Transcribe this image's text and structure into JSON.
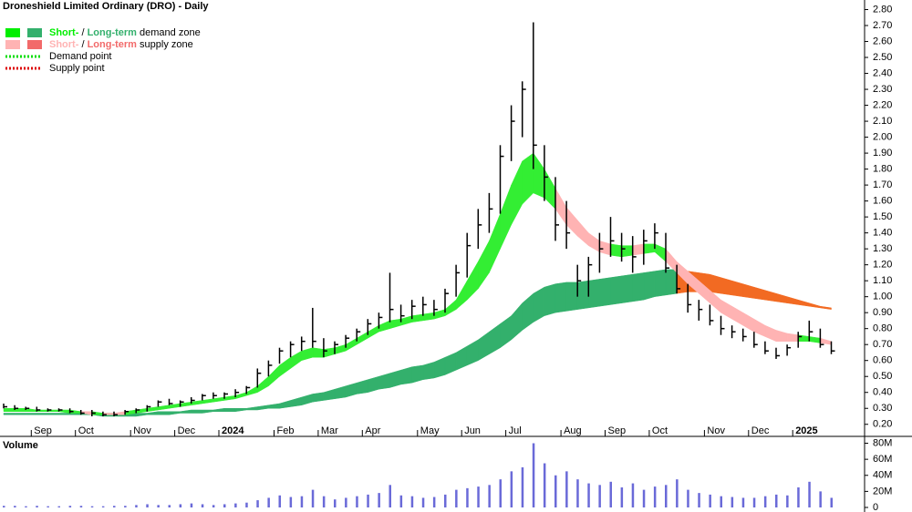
{
  "chart_data": [
    {
      "type": "ohlc",
      "title": "Droneshield Limited Ordinary (DRO) - Daily",
      "categories": [
        null,
        null,
        null,
        "Sep",
        null,
        null,
        null,
        "Oct",
        null,
        null,
        null,
        null,
        "Nov",
        null,
        null,
        null,
        "Dec",
        null,
        null,
        null,
        "2024",
        null,
        null,
        null,
        null,
        "Feb",
        null,
        null,
        null,
        "Mar",
        null,
        null,
        null,
        "Apr",
        null,
        null,
        null,
        null,
        "May",
        null,
        null,
        null,
        "Jun",
        null,
        null,
        null,
        "Jul",
        null,
        null,
        null,
        null,
        "Aug",
        null,
        null,
        null,
        "Sep",
        null,
        null,
        null,
        "Oct",
        null,
        null,
        null,
        null,
        "Nov",
        null,
        null,
        null,
        "Dec",
        null,
        null,
        null,
        "2025",
        null,
        null,
        null
      ],
      "high": [
        0.33,
        0.32,
        0.31,
        0.31,
        0.3,
        0.3,
        0.3,
        0.29,
        0.29,
        0.28,
        0.28,
        0.29,
        0.3,
        0.32,
        0.35,
        0.36,
        0.35,
        0.37,
        0.39,
        0.4,
        0.4,
        0.42,
        0.44,
        0.55,
        0.6,
        0.68,
        0.72,
        0.75,
        0.93,
        0.74,
        0.72,
        0.76,
        0.8,
        0.86,
        0.9,
        1.15,
        0.95,
        0.98,
        1.0,
        0.98,
        1.05,
        1.2,
        1.4,
        1.55,
        1.65,
        1.95,
        2.2,
        2.35,
        2.72,
        1.95,
        1.75,
        1.6,
        1.2,
        1.25,
        1.4,
        1.5,
        1.4,
        1.38,
        1.42,
        1.46,
        1.4,
        1.2,
        1.08,
        0.98,
        0.95,
        0.88,
        0.82,
        0.8,
        0.78,
        0.72,
        0.68,
        0.7,
        0.78,
        0.85,
        0.8,
        0.72
      ],
      "low": [
        0.3,
        0.29,
        0.29,
        0.28,
        0.28,
        0.28,
        0.27,
        0.26,
        0.25,
        0.25,
        0.25,
        0.26,
        0.27,
        0.28,
        0.31,
        0.32,
        0.31,
        0.33,
        0.35,
        0.36,
        0.36,
        0.37,
        0.39,
        0.43,
        0.5,
        0.58,
        0.62,
        0.66,
        0.68,
        0.62,
        0.64,
        0.68,
        0.72,
        0.76,
        0.8,
        0.84,
        0.84,
        0.86,
        0.88,
        0.88,
        0.9,
        1.0,
        1.12,
        1.3,
        1.4,
        1.52,
        1.85,
        2.0,
        1.8,
        1.6,
        1.35,
        1.3,
        1.0,
        1.0,
        1.15,
        1.25,
        1.22,
        1.15,
        1.2,
        1.3,
        1.15,
        1.02,
        0.9,
        0.85,
        0.82,
        0.76,
        0.74,
        0.72,
        0.68,
        0.64,
        0.61,
        0.63,
        0.68,
        0.72,
        0.68,
        0.64
      ],
      "close": [
        0.31,
        0.3,
        0.3,
        0.29,
        0.29,
        0.29,
        0.28,
        0.27,
        0.27,
        0.26,
        0.26,
        0.28,
        0.29,
        0.31,
        0.34,
        0.33,
        0.34,
        0.35,
        0.38,
        0.38,
        0.39,
        0.4,
        0.43,
        0.52,
        0.57,
        0.66,
        0.7,
        0.72,
        0.72,
        0.66,
        0.7,
        0.74,
        0.78,
        0.83,
        0.87,
        0.92,
        0.88,
        0.94,
        0.95,
        0.92,
        1.02,
        1.15,
        1.32,
        1.45,
        1.55,
        1.88,
        2.1,
        2.3,
        1.95,
        1.75,
        1.45,
        1.4,
        1.1,
        1.2,
        1.3,
        1.35,
        1.3,
        1.25,
        1.35,
        1.4,
        1.18,
        1.05,
        0.95,
        0.92,
        0.85,
        0.8,
        0.78,
        0.75,
        0.7,
        0.66,
        0.63,
        0.68,
        0.75,
        0.78,
        0.7,
        0.66
      ],
      "zones": [
        {
          "lower": [
            0.28,
            0.28,
            0.28,
            0.28,
            0.28,
            0.28,
            0.27,
            0.27,
            0.26,
            0.26,
            0.26,
            0.26,
            0.27,
            0.28,
            0.29,
            0.3,
            0.31,
            0.32,
            0.33,
            0.34,
            0.35,
            0.36,
            0.38,
            0.4,
            0.44,
            0.5,
            0.55,
            0.6,
            0.62,
            0.62,
            0.64,
            0.66,
            0.7,
            0.74,
            0.78,
            0.8,
            0.82,
            0.84,
            0.85,
            0.86,
            0.88,
            0.92,
            0.98,
            1.05,
            1.15,
            1.3,
            1.45,
            1.58,
            1.65,
            1.62,
            1.55,
            1.45,
            1.38,
            1.32,
            1.28,
            1.26,
            1.25,
            1.26,
            1.27,
            1.28,
            1.22,
            1.15,
            1.08,
            1.02,
            0.96,
            0.9,
            0.86,
            0.82,
            0.78,
            0.75,
            0.72,
            0.72,
            0.72,
            0.72,
            0.71,
            0.7
          ],
          "upper": [
            0.3,
            0.3,
            0.3,
            0.29,
            0.29,
            0.29,
            0.29,
            0.28,
            0.28,
            0.27,
            0.27,
            0.28,
            0.29,
            0.3,
            0.31,
            0.32,
            0.33,
            0.34,
            0.35,
            0.36,
            0.37,
            0.38,
            0.4,
            0.44,
            0.5,
            0.57,
            0.62,
            0.66,
            0.68,
            0.67,
            0.68,
            0.7,
            0.74,
            0.78,
            0.82,
            0.85,
            0.86,
            0.88,
            0.89,
            0.9,
            0.92,
            0.98,
            1.1,
            1.22,
            1.35,
            1.52,
            1.7,
            1.85,
            1.9,
            1.8,
            1.68,
            1.56,
            1.48,
            1.4,
            1.35,
            1.33,
            1.32,
            1.32,
            1.33,
            1.33,
            1.3,
            1.22,
            1.16,
            1.1,
            1.04,
            0.98,
            0.94,
            0.9,
            0.86,
            0.82,
            0.79,
            0.77,
            0.76,
            0.75,
            0.74,
            0.72
          ],
          "demand_color": "#33ee33",
          "supply_color": "#ffb3b3"
        },
        {
          "lower": [
            0.26,
            0.26,
            0.26,
            0.26,
            0.26,
            0.26,
            0.26,
            0.26,
            0.26,
            0.25,
            0.25,
            0.25,
            0.25,
            0.26,
            0.26,
            0.26,
            0.27,
            0.27,
            0.27,
            0.28,
            0.28,
            0.28,
            0.29,
            0.29,
            0.3,
            0.3,
            0.31,
            0.32,
            0.34,
            0.35,
            0.36,
            0.37,
            0.39,
            0.4,
            0.42,
            0.43,
            0.45,
            0.46,
            0.48,
            0.49,
            0.51,
            0.54,
            0.57,
            0.6,
            0.64,
            0.68,
            0.73,
            0.79,
            0.84,
            0.88,
            0.9,
            0.91,
            0.92,
            0.93,
            0.94,
            0.95,
            0.96,
            0.97,
            0.98,
            1.0,
            1.01,
            1.02,
            1.03,
            1.03,
            1.03,
            1.02,
            1.01,
            1.0,
            0.99,
            0.98,
            0.97,
            0.96,
            0.95,
            0.94,
            0.93,
            0.92
          ],
          "upper": [
            0.27,
            0.27,
            0.27,
            0.27,
            0.27,
            0.27,
            0.27,
            0.27,
            0.27,
            0.27,
            0.27,
            0.27,
            0.27,
            0.27,
            0.28,
            0.28,
            0.28,
            0.29,
            0.29,
            0.29,
            0.3,
            0.3,
            0.3,
            0.31,
            0.32,
            0.33,
            0.35,
            0.37,
            0.39,
            0.4,
            0.42,
            0.44,
            0.46,
            0.48,
            0.5,
            0.52,
            0.54,
            0.56,
            0.57,
            0.59,
            0.62,
            0.65,
            0.69,
            0.73,
            0.78,
            0.83,
            0.88,
            0.96,
            1.02,
            1.06,
            1.08,
            1.09,
            1.09,
            1.1,
            1.11,
            1.12,
            1.13,
            1.14,
            1.15,
            1.16,
            1.17,
            1.17,
            1.16,
            1.15,
            1.14,
            1.12,
            1.1,
            1.08,
            1.06,
            1.04,
            1.02,
            1.0,
            0.98,
            0.96,
            0.94,
            0.93
          ],
          "demand_color": "#33b06c",
          "supply_color": "#f26a22"
        }
      ],
      "legend": [
        {
          "parts": [
            "Short-",
            "/",
            "Long-term",
            "demand zone"
          ],
          "colors": [
            "#00ee00",
            "#33b06c"
          ]
        },
        {
          "parts": [
            "Short-",
            "/",
            "Long-term",
            "supply zone"
          ],
          "colors": [
            "#ffb3b3",
            "#f26a6a"
          ]
        },
        {
          "parts": [
            "Demand point"
          ],
          "colors": [
            "#00dd00"
          ]
        },
        {
          "parts": [
            "Supply point"
          ],
          "colors": [
            "#dd0000"
          ]
        }
      ],
      "ylim": [
        0.13,
        2.86
      ],
      "yticks": [
        {
          "value": 0.2,
          "label": "0.20"
        },
        {
          "value": 0.3,
          "label": "0.30"
        },
        {
          "value": 0.4,
          "label": "0.40"
        },
        {
          "value": 0.5,
          "label": "0.50"
        },
        {
          "value": 0.6,
          "label": "0.60"
        },
        {
          "value": 0.7,
          "label": "0.70"
        },
        {
          "value": 0.8,
          "label": "0.80"
        },
        {
          "value": 0.9,
          "label": "0.90"
        },
        {
          "value": 1.0,
          "label": "1.00"
        },
        {
          "value": 1.1,
          "label": "1.10"
        },
        {
          "value": 1.2,
          "label": "1.20"
        },
        {
          "value": 1.3,
          "label": "1.30"
        },
        {
          "value": 1.4,
          "label": "1.40"
        },
        {
          "value": 1.5,
          "label": "1.50"
        },
        {
          "value": 1.6,
          "label": "1.60"
        },
        {
          "value": 1.7,
          "label": "1.70"
        },
        {
          "value": 1.8,
          "label": "1.80"
        },
        {
          "value": 1.9,
          "label": "1.90"
        },
        {
          "value": 2.0,
          "label": "2.00"
        },
        {
          "value": 2.1,
          "label": "2.10"
        },
        {
          "value": 2.2,
          "label": "2.20"
        },
        {
          "value": 2.3,
          "label": "2.30"
        },
        {
          "value": 2.4,
          "label": "2.40"
        },
        {
          "value": 2.5,
          "label": "2.50"
        },
        {
          "value": 2.6,
          "label": "2.60"
        },
        {
          "value": 2.7,
          "label": "2.70"
        },
        {
          "value": 2.8,
          "label": "2.80"
        }
      ],
      "color": "#000000"
    },
    {
      "type": "bar",
      "title": "Volume",
      "values": [
        2,
        2,
        1.5,
        2,
        1.5,
        1.5,
        2,
        2,
        1.5,
        1.5,
        2,
        2,
        3,
        4,
        3,
        3,
        4,
        5,
        4,
        3,
        4,
        5,
        6,
        9,
        12,
        15,
        13,
        14,
        22,
        14,
        10,
        12,
        14,
        16,
        18,
        28,
        15,
        14,
        12,
        13,
        16,
        22,
        24,
        26,
        28,
        35,
        45,
        50,
        80,
        55,
        40,
        45,
        35,
        30,
        28,
        32,
        25,
        30,
        22,
        26,
        28,
        35,
        22,
        18,
        16,
        14,
        13,
        12,
        12,
        14,
        16,
        15,
        25,
        32,
        20,
        12
      ],
      "color": "#6a6ad8",
      "ylim": [
        0,
        84
      ],
      "yticks": [
        0,
        {
          "value": 20,
          "label": "20M"
        },
        {
          "value": 40,
          "label": "40M"
        },
        {
          "value": 60,
          "label": "60M"
        },
        {
          "value": 80,
          "label": "80M"
        }
      ]
    }
  ]
}
